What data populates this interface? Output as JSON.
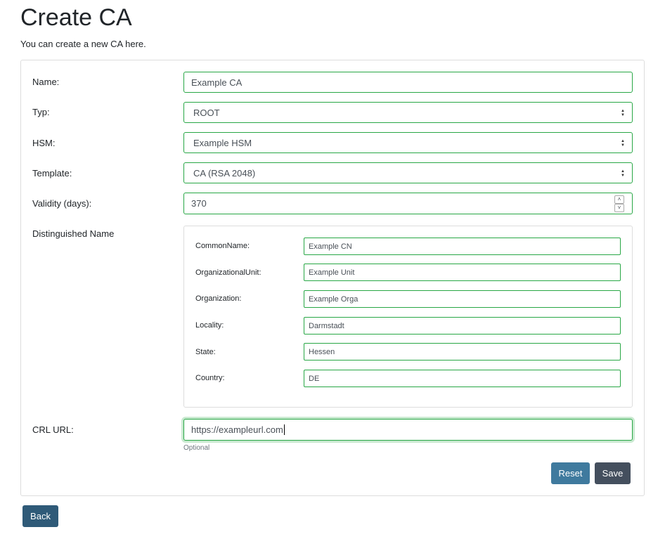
{
  "page": {
    "title": "Create CA",
    "subtitle": "You can create a new CA here."
  },
  "form": {
    "name": {
      "label": "Name:",
      "value": "Example CA"
    },
    "typ": {
      "label": "Typ:",
      "value": "ROOT"
    },
    "hsm": {
      "label": "HSM:",
      "value": "Example HSM"
    },
    "template": {
      "label": "Template:",
      "value": "CA (RSA 2048)"
    },
    "validity": {
      "label": "Validity (days):",
      "value": "370"
    },
    "dn": {
      "label": "Distinguished Name",
      "fields": [
        {
          "label": "CommonName:",
          "value": "Example CN"
        },
        {
          "label": "OrganizationalUnit:",
          "value": "Example Unit"
        },
        {
          "label": "Organization:",
          "value": "Example Orga"
        },
        {
          "label": "Locality:",
          "value": "Darmstadt"
        },
        {
          "label": "State:",
          "value": "Hessen"
        },
        {
          "label": "Country:",
          "value": "DE"
        }
      ]
    },
    "crl": {
      "label": "CRL URL:",
      "value": "https://exampleurl.com",
      "help": "Optional"
    },
    "reset_label": "Reset",
    "save_label": "Save"
  },
  "back_label": "Back",
  "colors": {
    "valid_border": "#28a745",
    "reset": "#3f7a9e",
    "save": "#444f5e",
    "back": "#2f5a78"
  }
}
